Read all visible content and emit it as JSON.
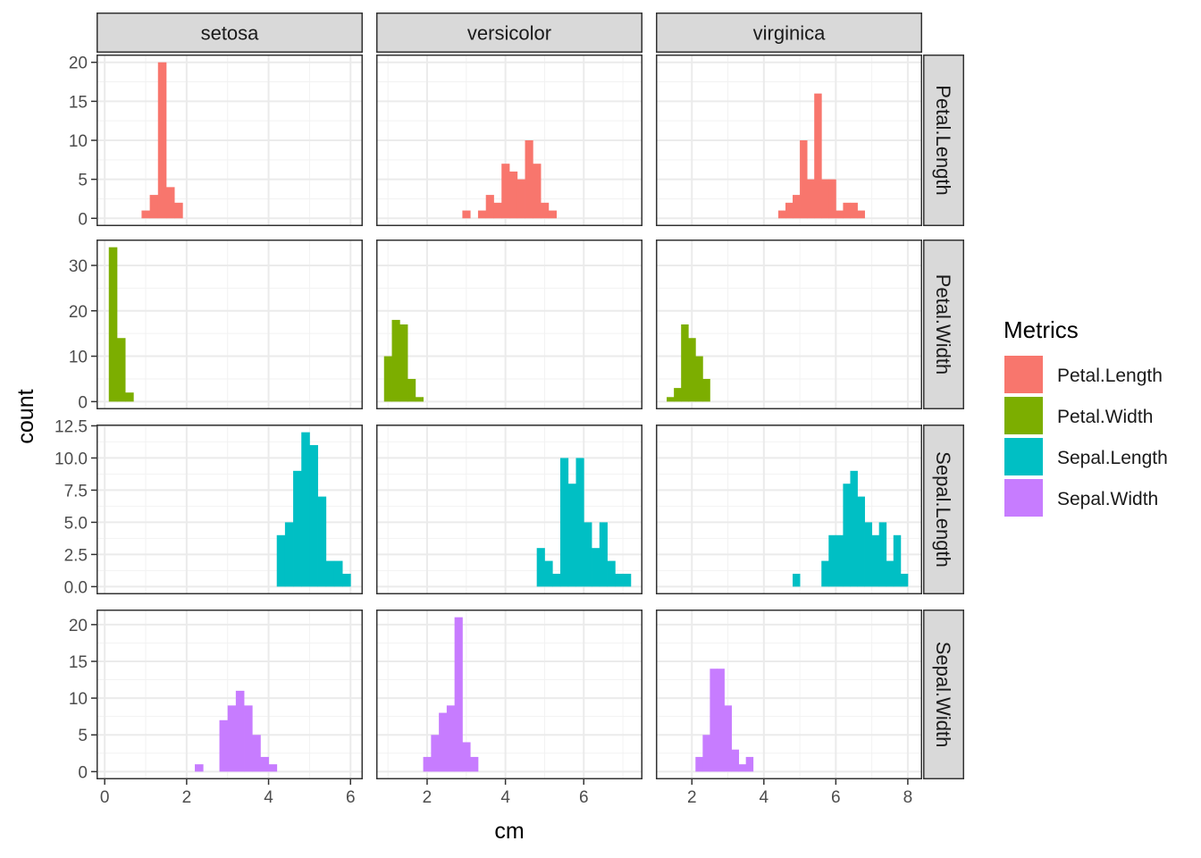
{
  "chart_data": {
    "type": "bar",
    "facet_columns": [
      "setosa",
      "versicolor",
      "virginica"
    ],
    "facet_rows": [
      "Petal.Length",
      "Petal.Width",
      "Sepal.Length",
      "Sepal.Width"
    ],
    "xlabel": "cm",
    "ylabel": "count",
    "grid": true,
    "legend": {
      "title": "Metrics",
      "placement": "right",
      "entries": [
        {
          "label": "Petal.Length",
          "color": "#F8766D"
        },
        {
          "label": "Petal.Width",
          "color": "#7CAE00"
        },
        {
          "label": "Sepal.Length",
          "color": "#00BFC4"
        },
        {
          "label": "Sepal.Width",
          "color": "#C77CFF"
        }
      ]
    },
    "columns": [
      {
        "name": "setosa",
        "xlim": [
          -0.2,
          6.3
        ],
        "xticks": [
          0,
          2,
          4,
          6
        ],
        "minor_xticks": [
          1,
          3,
          5
        ]
      },
      {
        "name": "versicolor",
        "xlim": [
          0.7,
          7.5
        ],
        "xticks": [
          2,
          4,
          6
        ],
        "minor_xticks": [
          1,
          3,
          5,
          7
        ]
      },
      {
        "name": "virginica",
        "xlim": [
          1.0,
          8.4
        ],
        "xticks": [
          2,
          4,
          6,
          8
        ],
        "minor_xticks": [
          1,
          3,
          5,
          7
        ]
      }
    ],
    "rows": [
      {
        "name": "Petal.Length",
        "ylim": [
          -1,
          21
        ],
        "yticks": [
          0,
          5,
          10,
          15,
          20
        ],
        "ytick_labels": [
          "0",
          "5",
          "10",
          "15",
          "20"
        ],
        "minor_yticks": [
          2.5,
          7.5,
          12.5,
          17.5
        ]
      },
      {
        "name": "Petal.Width",
        "ylim": [
          -1.7,
          35.7
        ],
        "yticks": [
          0,
          10,
          20,
          30
        ],
        "ytick_labels": [
          "0",
          "10",
          "20",
          "30"
        ],
        "minor_yticks": [
          5,
          15,
          25
        ]
      },
      {
        "name": "Sepal.Length",
        "ylim": [
          -0.6,
          12.6
        ],
        "yticks": [
          0,
          2.5,
          5,
          7.5,
          10,
          12.5
        ],
        "ytick_labels": [
          "0.0",
          "2.5",
          "5.0",
          "7.5",
          "10.0",
          "12.5"
        ],
        "minor_yticks": [
          1.25,
          3.75,
          6.25,
          8.75,
          11.25
        ]
      },
      {
        "name": "Sepal.Width",
        "ylim": [
          -1.05,
          22.05
        ],
        "yticks": [
          0,
          5,
          10,
          15,
          20
        ],
        "ytick_labels": [
          "0",
          "5",
          "10",
          "15",
          "20"
        ],
        "minor_yticks": [
          2.5,
          7.5,
          12.5,
          17.5
        ]
      }
    ],
    "bin_width": 0.2,
    "bars": [
      {
        "row": "Petal.Length",
        "col": "setosa",
        "start": 0.9,
        "counts": [
          1,
          3,
          20,
          4,
          2
        ]
      },
      {
        "row": "Petal.Length",
        "col": "versicolor",
        "start": 2.9,
        "counts": [
          1,
          0,
          1,
          3,
          2,
          7,
          6,
          5,
          10,
          7,
          2,
          1
        ]
      },
      {
        "row": "Petal.Length",
        "col": "virginica",
        "start": 4.4,
        "counts": [
          1,
          2,
          3,
          10,
          5,
          16,
          5,
          5,
          1,
          2,
          2,
          1
        ]
      },
      {
        "row": "Petal.Width",
        "col": "setosa",
        "start": 0.1,
        "counts": [
          34,
          14,
          2
        ]
      },
      {
        "row": "Petal.Width",
        "col": "versicolor",
        "start": 0.9,
        "counts": [
          10,
          18,
          17,
          5,
          1
        ]
      },
      {
        "row": "Petal.Width",
        "col": "virginica",
        "start": 1.3,
        "counts": [
          1,
          3,
          17,
          14,
          10,
          5
        ]
      },
      {
        "row": "Sepal.Length",
        "col": "setosa",
        "start": 4.2,
        "counts": [
          4,
          5,
          9,
          12,
          11,
          7,
          2,
          2,
          1
        ]
      },
      {
        "row": "Sepal.Length",
        "col": "versicolor",
        "start": 4.8,
        "counts": [
          3,
          2,
          1,
          10,
          8,
          10,
          5,
          3,
          5,
          2,
          1,
          1
        ]
      },
      {
        "row": "Sepal.Length",
        "col": "virginica",
        "start": 4.8,
        "counts": [
          1,
          0,
          0,
          0,
          2,
          4,
          4,
          8,
          9,
          7,
          5,
          4,
          5,
          2,
          4,
          1
        ]
      },
      {
        "row": "Sepal.Width",
        "col": "setosa",
        "start": 2.2,
        "counts": [
          1,
          0,
          0,
          7,
          9,
          11,
          9,
          5,
          2,
          1
        ]
      },
      {
        "row": "Sepal.Width",
        "col": "versicolor",
        "start": 1.9,
        "counts": [
          2,
          5,
          8,
          9,
          21,
          4,
          2
        ]
      },
      {
        "row": "Sepal.Width",
        "col": "virginica",
        "start": 2.1,
        "counts": [
          2,
          5,
          14,
          14,
          9,
          3,
          1,
          2
        ]
      }
    ]
  }
}
